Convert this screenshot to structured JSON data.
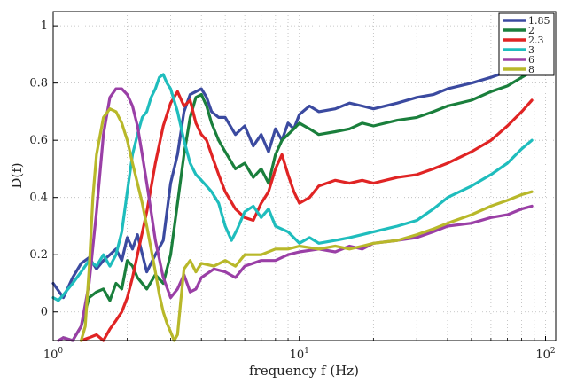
{
  "chart_data": {
    "type": "line",
    "title": "",
    "xlabel": "frequency f (Hz)",
    "ylabel": "D(f)",
    "xscale": "log",
    "xlim": [
      1,
      110
    ],
    "ylim": [
      -0.1,
      1.05
    ],
    "x_ticks": [
      1,
      10,
      100
    ],
    "x_tick_labels": [
      "10^0",
      "10^1",
      "10^2"
    ],
    "y_ticks": [
      0,
      0.2,
      0.4,
      0.6,
      0.8,
      1
    ],
    "y_tick_labels": [
      "0",
      "0.2",
      "0.4",
      "0.6",
      "0.8",
      "1"
    ],
    "grid": true,
    "legend_position": "top-right",
    "series": [
      {
        "name": "1.85",
        "color": "#3b4aa0",
        "x": [
          1,
          1.1,
          1.2,
          1.3,
          1.4,
          1.5,
          1.6,
          1.7,
          1.8,
          1.9,
          2.0,
          2.1,
          2.2,
          2.4,
          2.6,
          2.8,
          3.0,
          3.2,
          3.4,
          3.6,
          3.8,
          4.0,
          4.2,
          4.4,
          4.7,
          5.0,
          5.5,
          6.0,
          6.5,
          7.0,
          7.5,
          8.0,
          8.5,
          9.0,
          9.5,
          10,
          11,
          12,
          14,
          16,
          18,
          20,
          25,
          30,
          35,
          40,
          50,
          60,
          70,
          80,
          88
        ],
        "values": [
          0.1,
          0.05,
          0.12,
          0.17,
          0.19,
          0.15,
          0.18,
          0.2,
          0.22,
          0.18,
          0.26,
          0.22,
          0.27,
          0.14,
          0.2,
          0.25,
          0.45,
          0.55,
          0.7,
          0.76,
          0.77,
          0.78,
          0.75,
          0.7,
          0.68,
          0.68,
          0.62,
          0.65,
          0.58,
          0.62,
          0.56,
          0.64,
          0.6,
          0.66,
          0.64,
          0.69,
          0.72,
          0.7,
          0.71,
          0.73,
          0.72,
          0.71,
          0.73,
          0.75,
          0.76,
          0.78,
          0.8,
          0.82,
          0.84,
          0.86,
          0.88
        ]
      },
      {
        "name": "2",
        "color": "#1a7f3c",
        "x": [
          1.1,
          1.2,
          1.3,
          1.4,
          1.5,
          1.6,
          1.7,
          1.8,
          1.9,
          2.0,
          2.1,
          2.2,
          2.4,
          2.6,
          2.8,
          3.0,
          3.2,
          3.4,
          3.6,
          3.8,
          4.0,
          4.2,
          4.4,
          4.7,
          5.0,
          5.5,
          6.0,
          6.5,
          7.0,
          7.5,
          8.0,
          8.5,
          9.0,
          9.5,
          10,
          11,
          12,
          14,
          16,
          18,
          20,
          25,
          30,
          35,
          40,
          50,
          60,
          70,
          80,
          88
        ],
        "values": [
          -0.09,
          -0.1,
          -0.05,
          0.05,
          0.07,
          0.08,
          0.04,
          0.1,
          0.08,
          0.18,
          0.16,
          0.12,
          0.08,
          0.13,
          0.1,
          0.2,
          0.38,
          0.55,
          0.68,
          0.75,
          0.76,
          0.72,
          0.66,
          0.6,
          0.56,
          0.5,
          0.52,
          0.47,
          0.5,
          0.45,
          0.55,
          0.6,
          0.62,
          0.64,
          0.66,
          0.64,
          0.62,
          0.63,
          0.64,
          0.66,
          0.65,
          0.67,
          0.68,
          0.7,
          0.72,
          0.74,
          0.77,
          0.79,
          0.82,
          0.84
        ]
      },
      {
        "name": "2.3",
        "color": "#e02424",
        "x": [
          1.3,
          1.4,
          1.5,
          1.6,
          1.7,
          1.8,
          1.9,
          2.0,
          2.1,
          2.2,
          2.4,
          2.6,
          2.8,
          3.0,
          3.2,
          3.4,
          3.6,
          3.8,
          4.0,
          4.2,
          4.4,
          4.7,
          5.0,
          5.5,
          6.0,
          6.5,
          7.0,
          7.5,
          8.0,
          8.5,
          9.0,
          9.5,
          10,
          11,
          12,
          14,
          16,
          18,
          20,
          25,
          30,
          35,
          40,
          50,
          60,
          70,
          80,
          88
        ],
        "values": [
          -0.1,
          -0.09,
          -0.08,
          -0.1,
          -0.06,
          -0.03,
          0.0,
          0.05,
          0.12,
          0.2,
          0.35,
          0.52,
          0.65,
          0.73,
          0.77,
          0.72,
          0.74,
          0.66,
          0.62,
          0.6,
          0.55,
          0.48,
          0.42,
          0.36,
          0.33,
          0.32,
          0.38,
          0.42,
          0.5,
          0.55,
          0.48,
          0.42,
          0.38,
          0.4,
          0.44,
          0.46,
          0.45,
          0.46,
          0.45,
          0.47,
          0.48,
          0.5,
          0.52,
          0.56,
          0.6,
          0.65,
          0.7,
          0.74
        ]
      },
      {
        "name": "3",
        "color": "#1fbdbd",
        "x": [
          1,
          1.05,
          1.1,
          1.2,
          1.3,
          1.4,
          1.5,
          1.6,
          1.7,
          1.8,
          1.9,
          2.0,
          2.1,
          2.2,
          2.3,
          2.4,
          2.5,
          2.6,
          2.7,
          2.8,
          2.9,
          3.0,
          3.2,
          3.4,
          3.6,
          3.8,
          4.0,
          4.2,
          4.4,
          4.7,
          5.0,
          5.3,
          5.6,
          6.0,
          6.5,
          7.0,
          7.5,
          8.0,
          9.0,
          10,
          11,
          12,
          14,
          16,
          18,
          20,
          25,
          30,
          35,
          40,
          50,
          60,
          70,
          80,
          88
        ],
        "values": [
          0.05,
          0.04,
          0.06,
          0.1,
          0.14,
          0.18,
          0.16,
          0.2,
          0.16,
          0.2,
          0.28,
          0.42,
          0.55,
          0.62,
          0.68,
          0.7,
          0.75,
          0.78,
          0.82,
          0.83,
          0.8,
          0.78,
          0.7,
          0.6,
          0.52,
          0.48,
          0.46,
          0.44,
          0.42,
          0.38,
          0.3,
          0.25,
          0.29,
          0.35,
          0.37,
          0.33,
          0.36,
          0.3,
          0.28,
          0.24,
          0.26,
          0.24,
          0.25,
          0.26,
          0.27,
          0.28,
          0.3,
          0.32,
          0.36,
          0.4,
          0.44,
          0.48,
          0.52,
          0.57,
          0.6
        ]
      },
      {
        "name": "6",
        "color": "#9a3fa6",
        "x": [
          1.05,
          1.1,
          1.2,
          1.3,
          1.4,
          1.5,
          1.6,
          1.7,
          1.8,
          1.9,
          2.0,
          2.1,
          2.2,
          2.3,
          2.4,
          2.5,
          2.6,
          2.8,
          3.0,
          3.2,
          3.4,
          3.6,
          3.8,
          4.0,
          4.5,
          5.0,
          5.5,
          6.0,
          7.0,
          8.0,
          9.0,
          10,
          12,
          14,
          16,
          18,
          20,
          25,
          30,
          35,
          40,
          50,
          60,
          70,
          80,
          88
        ],
        "values": [
          -0.1,
          -0.09,
          -0.1,
          -0.05,
          0.1,
          0.35,
          0.62,
          0.75,
          0.78,
          0.78,
          0.76,
          0.72,
          0.65,
          0.55,
          0.45,
          0.35,
          0.25,
          0.12,
          0.05,
          0.08,
          0.13,
          0.07,
          0.08,
          0.12,
          0.15,
          0.14,
          0.12,
          0.16,
          0.18,
          0.18,
          0.2,
          0.21,
          0.22,
          0.21,
          0.23,
          0.22,
          0.24,
          0.25,
          0.26,
          0.28,
          0.3,
          0.31,
          0.33,
          0.34,
          0.36,
          0.37
        ]
      },
      {
        "name": "8",
        "color": "#b8b82a",
        "x": [
          1.3,
          1.35,
          1.4,
          1.45,
          1.5,
          1.6,
          1.7,
          1.8,
          1.9,
          2.0,
          2.1,
          2.2,
          2.3,
          2.4,
          2.5,
          2.6,
          2.7,
          2.8,
          2.9,
          3.0,
          3.1,
          3.2,
          3.3,
          3.4,
          3.6,
          3.8,
          4.0,
          4.5,
          5.0,
          5.5,
          6.0,
          7.0,
          8.0,
          9.0,
          10,
          12,
          14,
          16,
          18,
          20,
          25,
          30,
          35,
          40,
          50,
          60,
          70,
          80,
          88
        ],
        "values": [
          -0.1,
          -0.05,
          0.15,
          0.4,
          0.55,
          0.68,
          0.71,
          0.7,
          0.66,
          0.6,
          0.52,
          0.45,
          0.38,
          0.3,
          0.22,
          0.14,
          0.06,
          0.0,
          -0.04,
          -0.07,
          -0.1,
          -0.08,
          0.04,
          0.15,
          0.18,
          0.14,
          0.17,
          0.16,
          0.18,
          0.16,
          0.2,
          0.2,
          0.22,
          0.22,
          0.23,
          0.22,
          0.23,
          0.22,
          0.23,
          0.24,
          0.25,
          0.27,
          0.29,
          0.31,
          0.34,
          0.37,
          0.39,
          0.41,
          0.42
        ]
      }
    ]
  }
}
